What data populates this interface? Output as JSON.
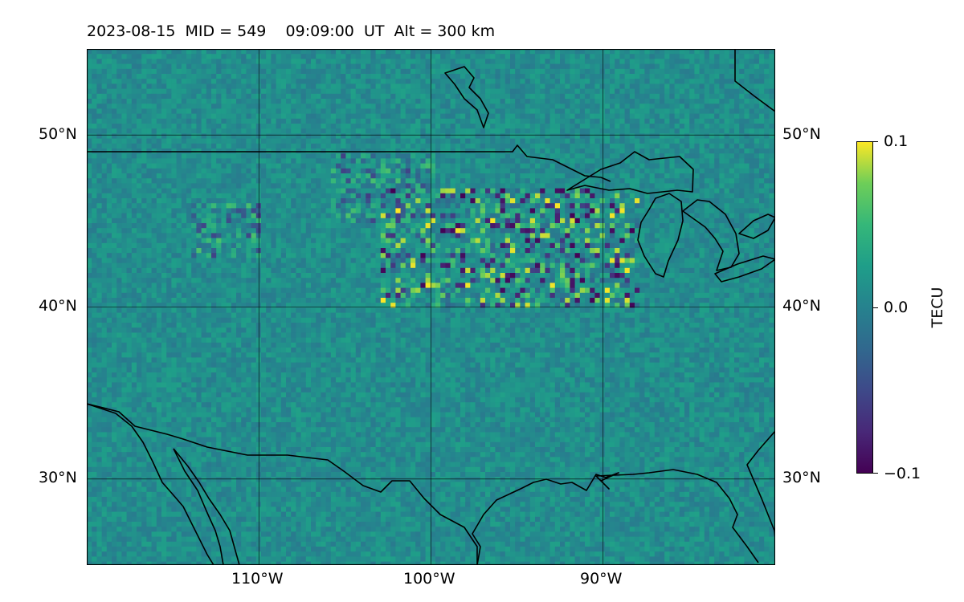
{
  "title": "2023-08-15  MID = 549    09:09:00  UT  Alt = 300 km",
  "map": {
    "field": "TEC perturbation",
    "extent": {
      "lon_min": -120,
      "lon_max": -80,
      "lat_min": 25,
      "lat_max": 55
    },
    "gridlines": {
      "lat": [
        30,
        40,
        50
      ],
      "lon": [
        -110,
        -100,
        -90
      ]
    },
    "lat_labels": [
      "30°N",
      "40°N",
      "50°N"
    ],
    "lon_labels": [
      "110°W",
      "100°W",
      "90°W"
    ],
    "coastline_color": "#000000",
    "features": [
      "US–Canada border",
      "Great Lakes",
      "Gulf of Mexico coast",
      "Baja California",
      "Gulf of California",
      "Hudson Bay coast"
    ]
  },
  "colorbar": {
    "label": "TECU",
    "colormap": "viridis",
    "min": -0.1,
    "max": 0.1,
    "tick_labels": [
      "0.1",
      "0.0",
      "−0.1"
    ]
  },
  "chart_data": {
    "type": "heatmap",
    "title": "2023-08-15  MID = 549    09:09:00  UT  Alt = 300 km",
    "x_range": [
      -120,
      -80
    ],
    "y_range": [
      25,
      55
    ],
    "value_range": [
      -0.1,
      0.1
    ],
    "unit": "TECU",
    "background_mean": 0.0,
    "disturbance_regions": [
      {
        "lon": [
          -103,
          -88
        ],
        "lat": [
          40,
          47
        ],
        "amplitude": 0.1
      },
      {
        "lon": [
          -114,
          -110
        ],
        "lat": [
          43,
          46
        ],
        "amplitude": 0.06
      },
      {
        "lon": [
          -106,
          -100
        ],
        "lat": [
          45,
          49
        ],
        "amplitude": 0.06
      }
    ]
  }
}
